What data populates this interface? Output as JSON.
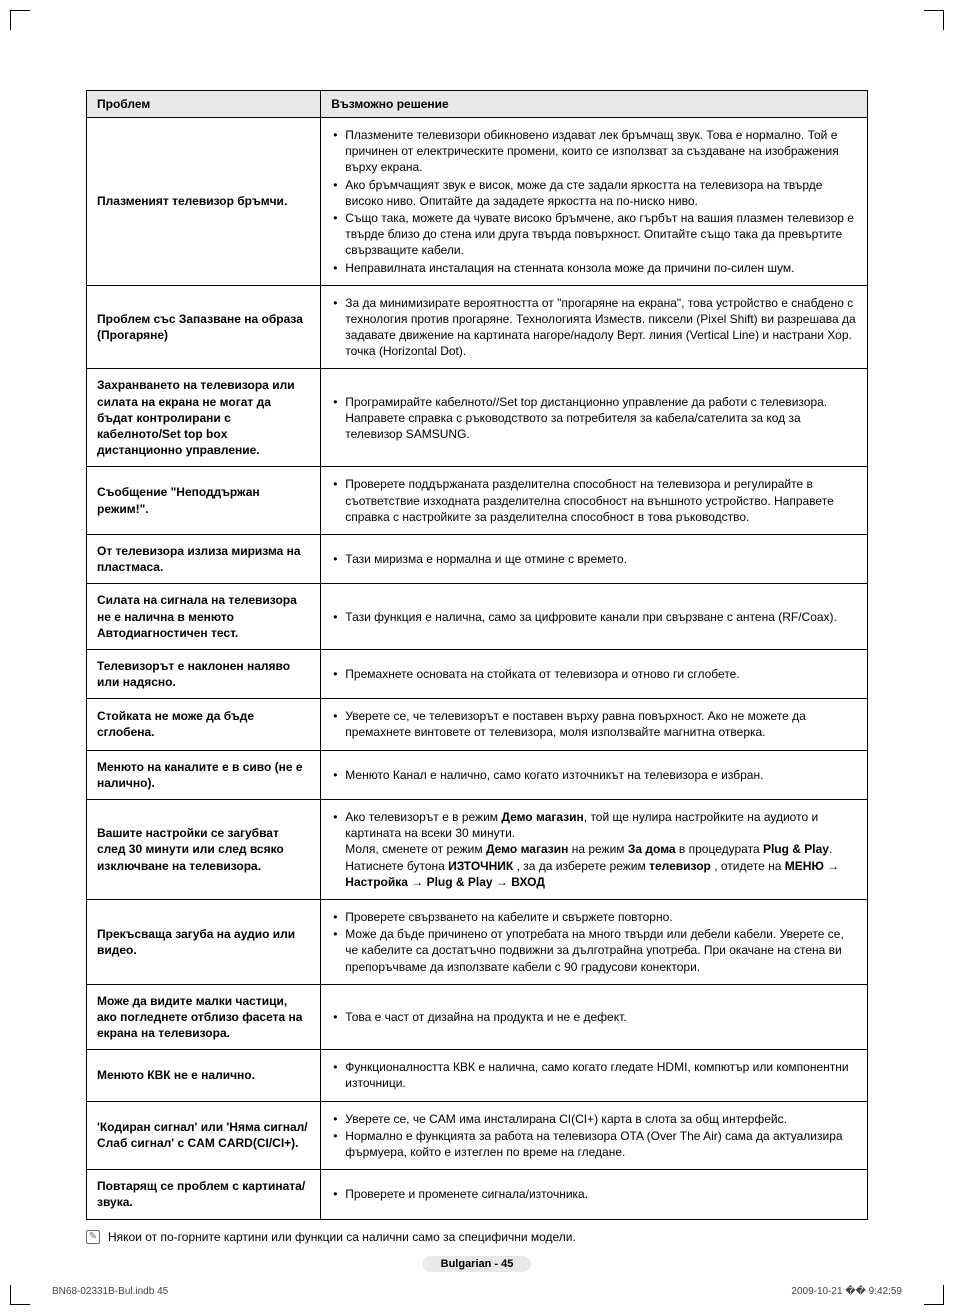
{
  "headers": {
    "problem": "Проблем",
    "solution": "Възможно решение"
  },
  "rows": [
    {
      "problem": "Плазменият телевизор бръмчи.",
      "items": [
        "Плазмените телевизори обикновено издават лек бръмчащ звук. Това е нормално. Той е причинен от електрическите промени, които се използват за създаване на изображения върху екрана.",
        "Ако бръмчащият звук е висок, може да сте задали яркостта на телевизора на твърде високо ниво.  Опитайте да зададете яркостта на по-ниско ниво.",
        "Също така, можете да чувате високо бръмчене, ако гърбът на вашия плазмен телевизор е твърде близо до стена или друга твърда повърхност. Опитайте също така да превъртите свързващите кабели.",
        "Неправилната инсталация на стенната конзола може да причини по-силен шум."
      ]
    },
    {
      "problem": "Проблем със Запазване на образа (Прогаряне)",
      "items": [
        "За да минимизирате вероятността от \"прогаряне на екрана\", това устройство е снабдено с технология против прогаряне. Технологията Изместв. пиксели (Pixel Shift) ви разрешава да задавате движение на картината нагоре/надолу Верт. линия (Vertical Line) и настрани Хор. точка (Horizontal Dot)."
      ]
    },
    {
      "problem": "Захранването на телевизора или силата на екрана не могат да бъдат контролирани с кабелното/Set top box дистанционно управление.",
      "items": [
        "Програмирайте кабелното//Set top дистанционно управление да работи с телевизора.\nНаправете справка с ръководството за потребителя за кабела/сателита за код за телевизор SAMSUNG."
      ]
    },
    {
      "problem": "Съобщение \"Неподдържан режим!\".",
      "items": [
        "Проверете поддържаната разделителна способност на телевизора и регулирайте в съответствие изходната разделителна способност на външното устройство. Направете справка с настройките за разделителна способност в това ръководство."
      ]
    },
    {
      "problem": "От телевизора излиза миризма на пластмаса.",
      "items": [
        "Тази миризма е нормална и ще отмине с времето."
      ]
    },
    {
      "problem": "Силата на сигнала на телевизора не е налична в менюто Автодиагностичен тест.",
      "items": [
        "Тази функция е налична, само за цифровите канали при свързване с антена (RF/Coax)."
      ]
    },
    {
      "problem": "Телевизорът е наклонен наляво или надясно.",
      "items": [
        "Премахнете основата на стойката от телевизора и отново ги сглобете."
      ]
    },
    {
      "problem": "Стойката не може да бъде сглобена.",
      "items": [
        "Уверете се, че телевизорът е поставен върху равна повърхност. Ако не можете да премахнете винтовете от телевизора, моля използвайте магнитна отверка."
      ]
    },
    {
      "problem": "Менюто на каналите е в сиво (не е налично).",
      "items": [
        "Менюто Канал е налично, само когато източникът на телевизора е избран."
      ]
    },
    {
      "problem": "Вашите настройки се загубват след 30 минути или след всяко изключване на телевизора.",
      "html": "<ul><li>Ако телевизорът е в режим <b>Демо магазин</b>, той ще нулира настройките на аудиото и картината на всеки 30 минути.<br>Моля, сменете от режим <b>Демо магазин</b> на режим <b>За дома</b> в процедурата <b>Plug &amp; Play</b>.<br>Натиснете бутона <b>ИЗТОЧНИК</b> , за да изберете режим <b>телевизор</b> , отидете на <b>МЕНЮ → Настройка → Plug &amp; Play → ВХОД</b></li></ul>"
    },
    {
      "problem": "Прекъсваща загуба на аудио или видео.",
      "items": [
        "Проверете свързването на кабелите и свържете повторно.",
        "Може да бъде причинено от употребата на много твърди или дебели кабели. Уверете се, че кабелите са достатъчно подвижни за дълготрайна употреба. При окачане на стена ви препоръчваме да използвате кабели с 90 градусови конектори."
      ]
    },
    {
      "problem": "Може да видите малки частици, ако погледнете отблизо фасета на екрана на телевизора.",
      "items": [
        "Това е част от дизайна на продукта и не е дефект."
      ]
    },
    {
      "problem": "Менюто КВК не е налично.",
      "items": [
        "Функционалността КВК е налична, само когато гледате HDMI, компютър или компонентни източници."
      ]
    },
    {
      "problem": "'Кодиран сигнал' или 'Няма сигнал/Слаб сигнал' с CAM CARD(CI/CI+).",
      "items": [
        "Уверете се, че CAM има инсталирана CI(CI+) карта в слота за общ интерфейс.",
        "Нормално е функцията за работа на телевизора OTA (Over The Air) сама да актуализира фърмуера, който е изтеглен по време на гледане."
      ]
    },
    {
      "problem": "Повтарящ се проблем с картината/звука.",
      "items": [
        "Проверете и променете сигнала/източника."
      ]
    }
  ],
  "note": "Някои от по-горните картини или функции са налични само за специфични модели.",
  "footer": "Bulgarian - 45",
  "meta_left": "BN68-02331B-Bul.indb   45",
  "meta_right": "2009-10-21   �� 9:42:59"
}
